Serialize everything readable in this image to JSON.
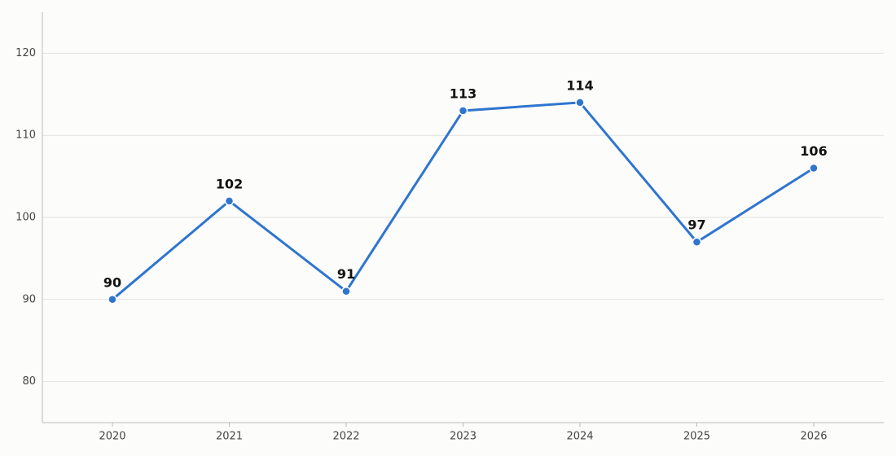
{
  "chart_data": {
    "type": "line",
    "categories": [
      "2020",
      "2021",
      "2022",
      "2023",
      "2024",
      "2025",
      "2026"
    ],
    "values": [
      90,
      102,
      91,
      113,
      114,
      97,
      106
    ],
    "color": "#2e75cf",
    "ylim": [
      75,
      125
    ],
    "yticks": [
      80,
      90,
      100,
      110,
      120
    ],
    "grid": true
  }
}
